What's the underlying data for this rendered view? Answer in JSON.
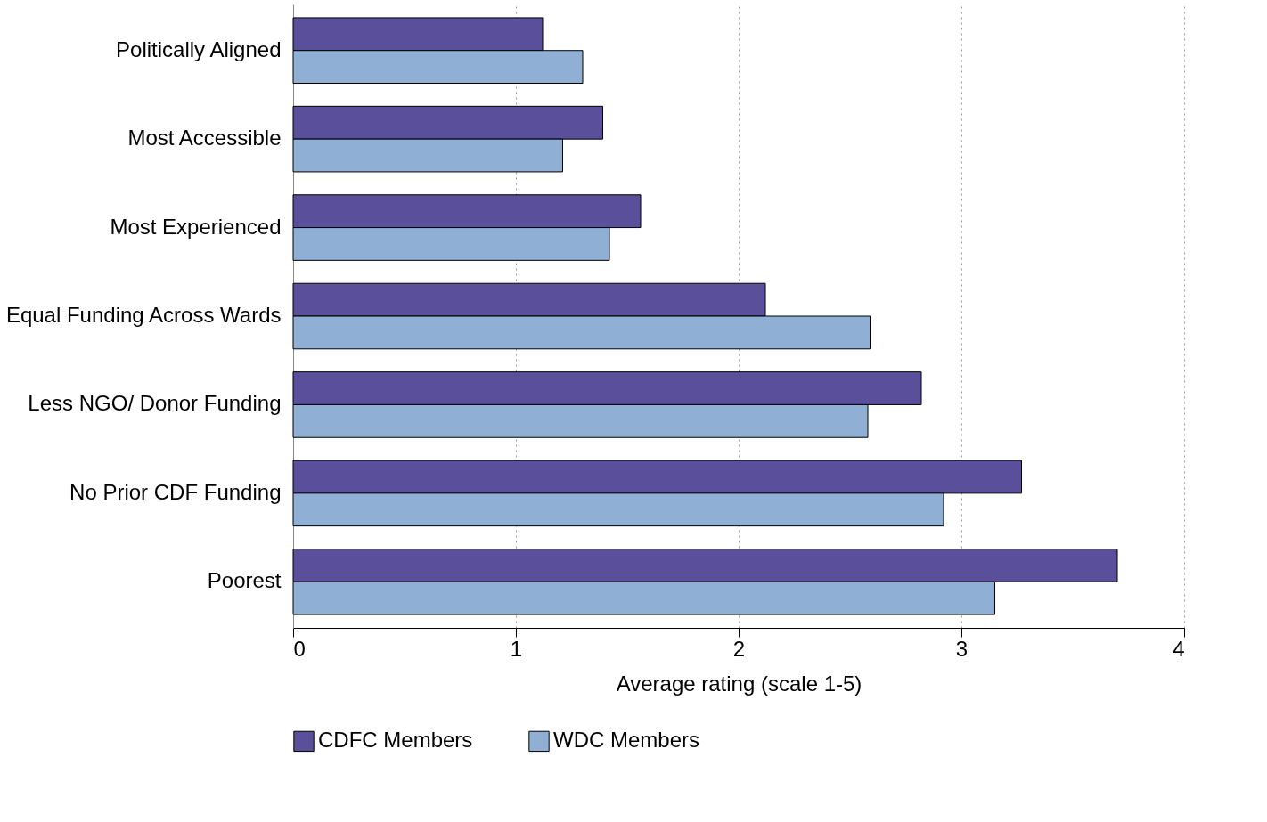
{
  "chart_data": {
    "type": "bar",
    "orientation": "horizontal",
    "xlabel": "Average rating (scale 1-5)",
    "categories": [
      "Politically Aligned",
      "Most Accessible",
      "Most Experienced",
      "Equal Funding Across Wards",
      "Less NGO/ Donor Funding",
      "No Prior CDF Funding",
      "Poorest"
    ],
    "series": [
      {
        "name": "CDFC Members",
        "color": "#5a4f9b",
        "values": [
          1.12,
          1.39,
          1.56,
          2.12,
          2.82,
          3.27,
          3.7
        ]
      },
      {
        "name": "WDC Members",
        "color": "#8fafd5",
        "values": [
          1.3,
          1.21,
          1.42,
          2.59,
          2.58,
          2.92,
          3.15
        ]
      }
    ],
    "xlim": [
      0,
      4
    ],
    "xticks": [
      0,
      1,
      2,
      3,
      4
    ],
    "grid": "x",
    "legend": "bottom"
  }
}
